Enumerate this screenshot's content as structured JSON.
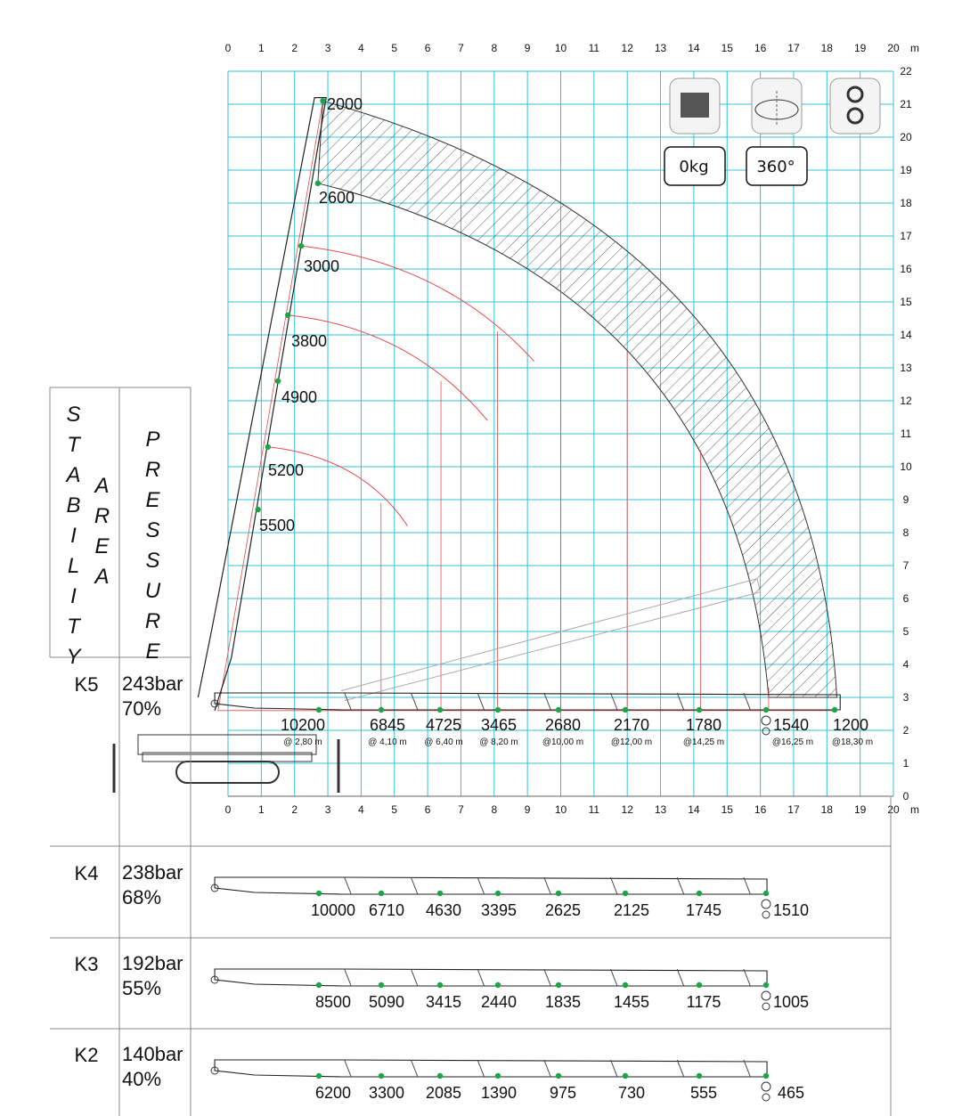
{
  "chart_data": {
    "type": "scatter",
    "xlabel": "m",
    "x_ticks": [
      0,
      1,
      2,
      3,
      4,
      5,
      6,
      7,
      8,
      9,
      10,
      11,
      12,
      13,
      14,
      15,
      16,
      17,
      18,
      19,
      20
    ],
    "y_ticks": [
      0,
      1,
      2,
      3,
      4,
      5,
      6,
      7,
      8,
      9,
      10,
      11,
      12,
      13,
      14,
      15,
      16,
      17,
      18,
      19,
      20,
      21,
      22
    ],
    "xlim": [
      0,
      20
    ],
    "ylim": [
      0,
      22
    ],
    "grid": true,
    "grid_color": "#35c0d6",
    "point_color": "#1aa548",
    "arc_color": "#e64a4a",
    "boom_vertical_loads": [
      {
        "x": 2.85,
        "y": 21.1,
        "load": "2000"
      },
      {
        "x": 2.7,
        "y": 18.6,
        "load": "2600"
      },
      {
        "x": 2.2,
        "y": 16.7,
        "load": "3000"
      },
      {
        "x": 1.8,
        "y": 14.6,
        "load": "3800"
      },
      {
        "x": 1.5,
        "y": 12.6,
        "load": "4900"
      },
      {
        "x": 1.2,
        "y": 10.6,
        "load": "5200"
      },
      {
        "x": 0.9,
        "y": 8.7,
        "load": "5500"
      }
    ],
    "rows": [
      {
        "config": "K5",
        "pressure": "243bar",
        "percent": "70%",
        "loads": [
          "10200",
          "6845",
          "4725",
          "3465",
          "2680",
          "2170",
          "1780",
          "1540",
          "1200"
        ],
        "radii": [
          "@ 2,80 m",
          "@ 4,10 m",
          "@ 6,40 m",
          "@ 8,20 m",
          "@10,00 m",
          "@12,00 m",
          "@14,25 m",
          "@16,25 m",
          "@18,30 m"
        ]
      },
      {
        "config": "K4",
        "pressure": "238bar",
        "percent": "68%",
        "loads": [
          "10000",
          "6710",
          "4630",
          "3395",
          "2625",
          "2125",
          "1745",
          "1510"
        ]
      },
      {
        "config": "K3",
        "pressure": "192bar",
        "percent": "55%",
        "loads": [
          "8500",
          "5090",
          "3415",
          "2440",
          "1835",
          "1455",
          "1175",
          "1005"
        ]
      },
      {
        "config": "K2",
        "pressure": "140bar",
        "percent": "40%",
        "loads": [
          "6200",
          "3300",
          "2085",
          "1390",
          "975",
          "730",
          "555",
          "465"
        ]
      }
    ]
  },
  "side_labels": {
    "stability": "STABILITY",
    "area": "AREA",
    "pressure": "PRESSURE"
  },
  "indicators": [
    {
      "icon": "counterweight-icon",
      "value": "0kg"
    },
    {
      "icon": "rotation-icon",
      "value": "360°"
    },
    {
      "icon": "hook-icon",
      "value": ""
    }
  ]
}
